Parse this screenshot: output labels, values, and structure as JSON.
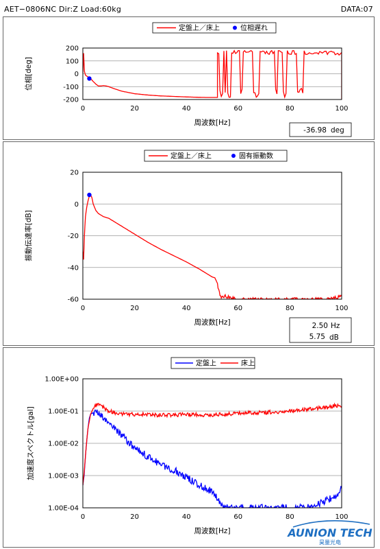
{
  "header": {
    "left": "AET−0806NC  Dir:Z  Load:60kg",
    "right": "DATA:07"
  },
  "chart_data": [
    {
      "type": "line",
      "ylabel": "位相[deg]",
      "xlabel": "周波数[Hz]",
      "xlim": [
        0,
        100
      ],
      "ylim": [
        -200,
        200
      ],
      "xticks": [
        "0",
        "20",
        "40",
        "60",
        "80",
        "100"
      ],
      "yticks": [
        "200",
        "100",
        "0",
        "-100",
        "-200"
      ],
      "legend": {
        "position": "top-center",
        "line": "定盤上／床上",
        "marker": "位相遅れ"
      },
      "series": [
        {
          "name": "定盤上／床上",
          "color": "#ff0000",
          "x": [
            0,
            0.3,
            0.6,
            1,
            1.5,
            2,
            2.5,
            3,
            4,
            5,
            6,
            7,
            8,
            9,
            10,
            12,
            15,
            20,
            25,
            30,
            35,
            40,
            45,
            48,
            49,
            50,
            51,
            52
          ],
          "y": [
            0,
            160,
            20,
            -10,
            -18,
            -25,
            -32,
            -37,
            -60,
            -80,
            -95,
            -95,
            -92,
            -95,
            -100,
            -115,
            -135,
            -155,
            -165,
            -172,
            -176,
            -180,
            -183,
            -184,
            -184,
            -184,
            -184,
            -184
          ]
        }
      ],
      "noise_region": {
        "x_from": 50,
        "x_to": 100,
        "description": "phase wraps between -180 and 180"
      },
      "markers": [
        {
          "name": "位相遅れ",
          "x": 2.5,
          "y": -36.98,
          "color": "#0000ff"
        }
      ],
      "readout": {
        "value": "-36.98",
        "unit": "deg"
      }
    },
    {
      "type": "line",
      "ylabel": "振動伝達率[dB]",
      "xlabel": "周波数[Hz]",
      "xlim": [
        0,
        100
      ],
      "ylim": [
        -60,
        20
      ],
      "xticks": [
        "0",
        "20",
        "40",
        "60",
        "80",
        "100"
      ],
      "yticks": [
        "20",
        "0",
        "-20",
        "-40",
        "-60"
      ],
      "legend": {
        "position": "top-center",
        "line": "定盤上／床上",
        "marker": "固有振動数"
      },
      "series": [
        {
          "name": "定盤上／床上",
          "color": "#ff0000",
          "x": [
            0,
            0.3,
            0.6,
            1,
            1.5,
            2,
            2.5,
            3,
            3.5,
            4,
            5,
            6,
            7,
            8,
            9,
            10,
            12,
            15,
            20,
            25,
            30,
            35,
            40,
            45,
            48,
            50,
            51,
            52,
            53,
            54,
            55,
            58,
            60,
            65,
            70,
            80,
            90,
            95,
            98,
            100
          ],
          "y": [
            -30,
            -35,
            -20,
            -8,
            -2,
            2,
            5,
            5.8,
            4,
            0,
            -4,
            -6,
            -7,
            -8,
            -8.5,
            -9,
            -11,
            -14,
            -19,
            -24,
            -28.5,
            -32.5,
            -36.5,
            -41,
            -44,
            -46,
            -46.5,
            -50,
            -57,
            -59,
            -58,
            -59,
            -60,
            -60,
            -60,
            -60,
            -60,
            -60,
            -59,
            -58
          ]
        }
      ],
      "markers": [
        {
          "name": "固有振動数",
          "x": 2.5,
          "y": 5.75,
          "color": "#0000ff"
        }
      ],
      "readout": {
        "freq_value": "2.50",
        "freq_unit": "Hz",
        "db_value": "5.75",
        "db_unit": "dB"
      }
    },
    {
      "type": "line",
      "ylabel": "加速度スペクトル[gal]",
      "xlabel": "周波数[Hz]",
      "xlim": [
        0,
        100
      ],
      "ylim_log10": [
        -4,
        0
      ],
      "yscale": "log",
      "xticks": [
        "0",
        "20",
        "40",
        "60",
        "80",
        "100"
      ],
      "yticks": [
        "1.00E+00",
        "1.00E-01",
        "1.00E-02",
        "1.00E-03",
        "1.00E-04"
      ],
      "legend": {
        "position": "top-center"
      },
      "series": [
        {
          "name": "定盤上",
          "color": "#0000ff",
          "x": [
            0,
            0.5,
            1,
            1.5,
            2,
            2.5,
            3,
            4,
            5,
            6,
            7,
            8,
            10,
            12,
            15,
            20,
            25,
            30,
            35,
            40,
            45,
            50,
            52,
            54,
            56,
            60,
            70,
            80,
            85,
            90,
            95,
            98,
            100
          ],
          "y": [
            0.0005,
            0.001,
            0.004,
            0.012,
            0.03,
            0.06,
            0.08,
            0.09,
            0.095,
            0.085,
            0.07,
            0.06,
            0.045,
            0.03,
            0.018,
            0.007,
            0.004,
            0.0022,
            0.0015,
            0.0009,
            0.0005,
            0.00032,
            0.0002,
            0.00011,
            0.0001,
            0.0001,
            0.0001,
            0.0001,
            0.0001,
            0.00012,
            0.00018,
            0.00025,
            0.0004
          ]
        },
        {
          "name": "床上",
          "color": "#ff0000",
          "x": [
            0,
            0.5,
            1,
            1.5,
            2,
            3,
            4,
            5,
            6,
            8,
            10,
            15,
            20,
            30,
            40,
            50,
            60,
            70,
            80,
            90,
            95,
            98,
            100
          ],
          "y": [
            0.0005,
            0.0012,
            0.004,
            0.012,
            0.03,
            0.08,
            0.12,
            0.15,
            0.16,
            0.13,
            0.1,
            0.08,
            0.08,
            0.075,
            0.078,
            0.075,
            0.085,
            0.09,
            0.1,
            0.12,
            0.13,
            0.15,
            0.14
          ]
        }
      ]
    }
  ],
  "logo": {
    "main": "AUNION TECH",
    "sub": "昊量光电"
  }
}
